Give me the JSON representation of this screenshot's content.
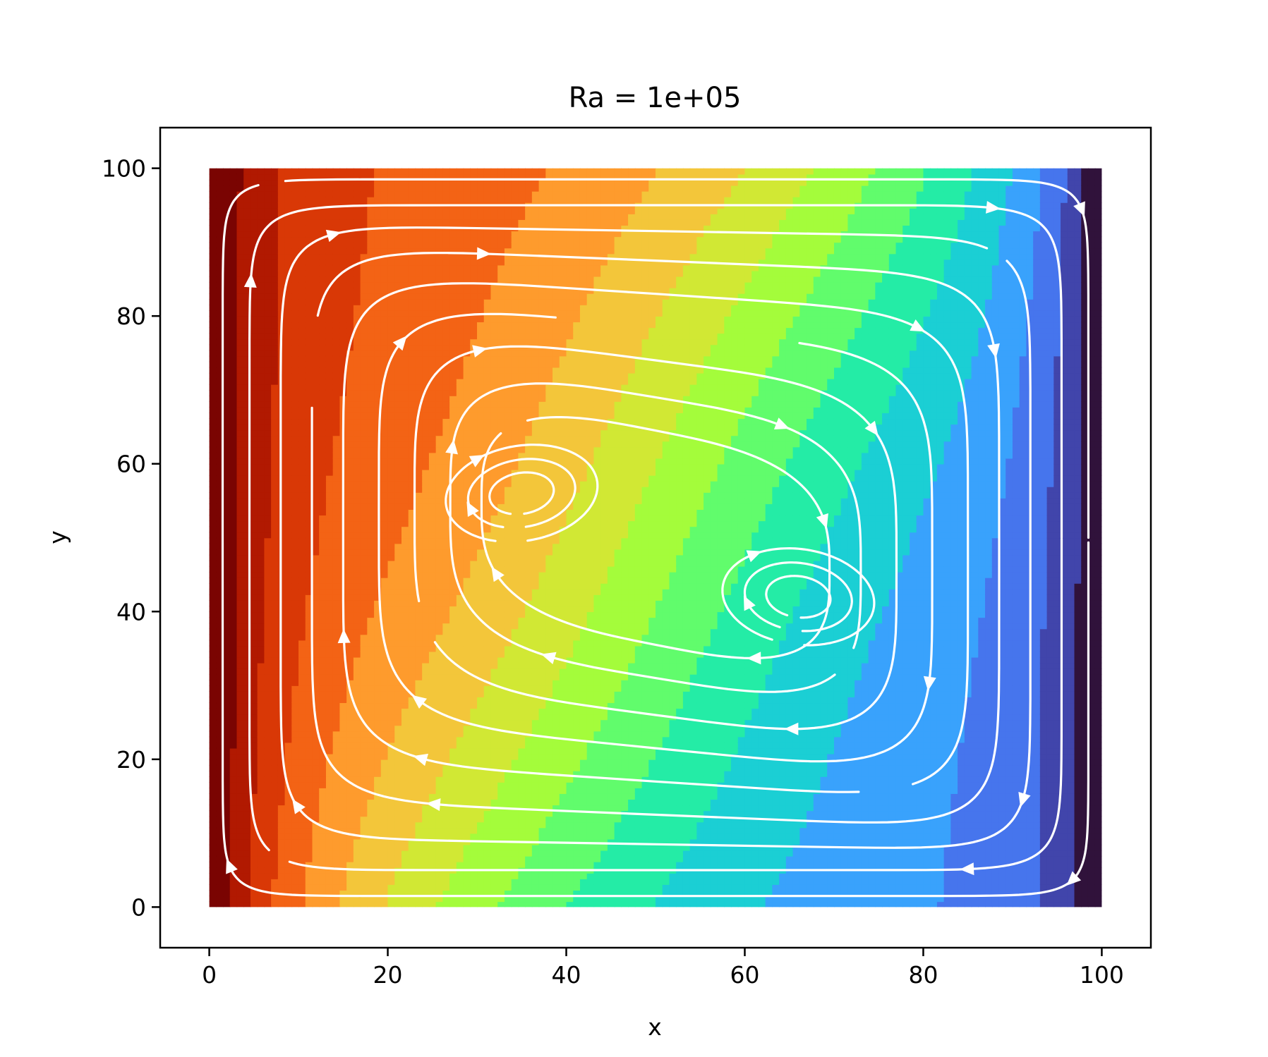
{
  "chart_data": {
    "type": "contour-streamplot",
    "title": "Ra = 1e+05",
    "xlabel": "x",
    "ylabel": "y",
    "xlim": [
      -5.5,
      105.5
    ],
    "ylim": [
      -5.5,
      105.5
    ],
    "domain": {
      "x": [
        0,
        100
      ],
      "y": [
        0,
        100
      ]
    },
    "xticks": [
      0,
      20,
      40,
      60,
      80,
      100
    ],
    "yticks": [
      0,
      20,
      40,
      60,
      80,
      100
    ],
    "xtick_labels": [
      "0",
      "20",
      "40",
      "60",
      "80",
      "100"
    ],
    "ytick_labels": [
      "0",
      "20",
      "40",
      "60",
      "80",
      "100"
    ],
    "grid": false,
    "legend": "none",
    "colormap": "turbo",
    "contour_levels": [
      "#30123b",
      "#4145ab",
      "#4675ed",
      "#39a2fc",
      "#1bcfd4",
      "#24eca6",
      "#61fc6c",
      "#a4fc3b",
      "#d1e834",
      "#f3c63a",
      "#fe9b2d",
      "#f36315",
      "#d93806",
      "#b11901",
      "#7a0402"
    ],
    "streamline_color": "#ffffff",
    "vortex_centers": [
      {
        "x": 35,
        "y": 56
      },
      {
        "x": 66,
        "y": 42
      }
    ]
  }
}
